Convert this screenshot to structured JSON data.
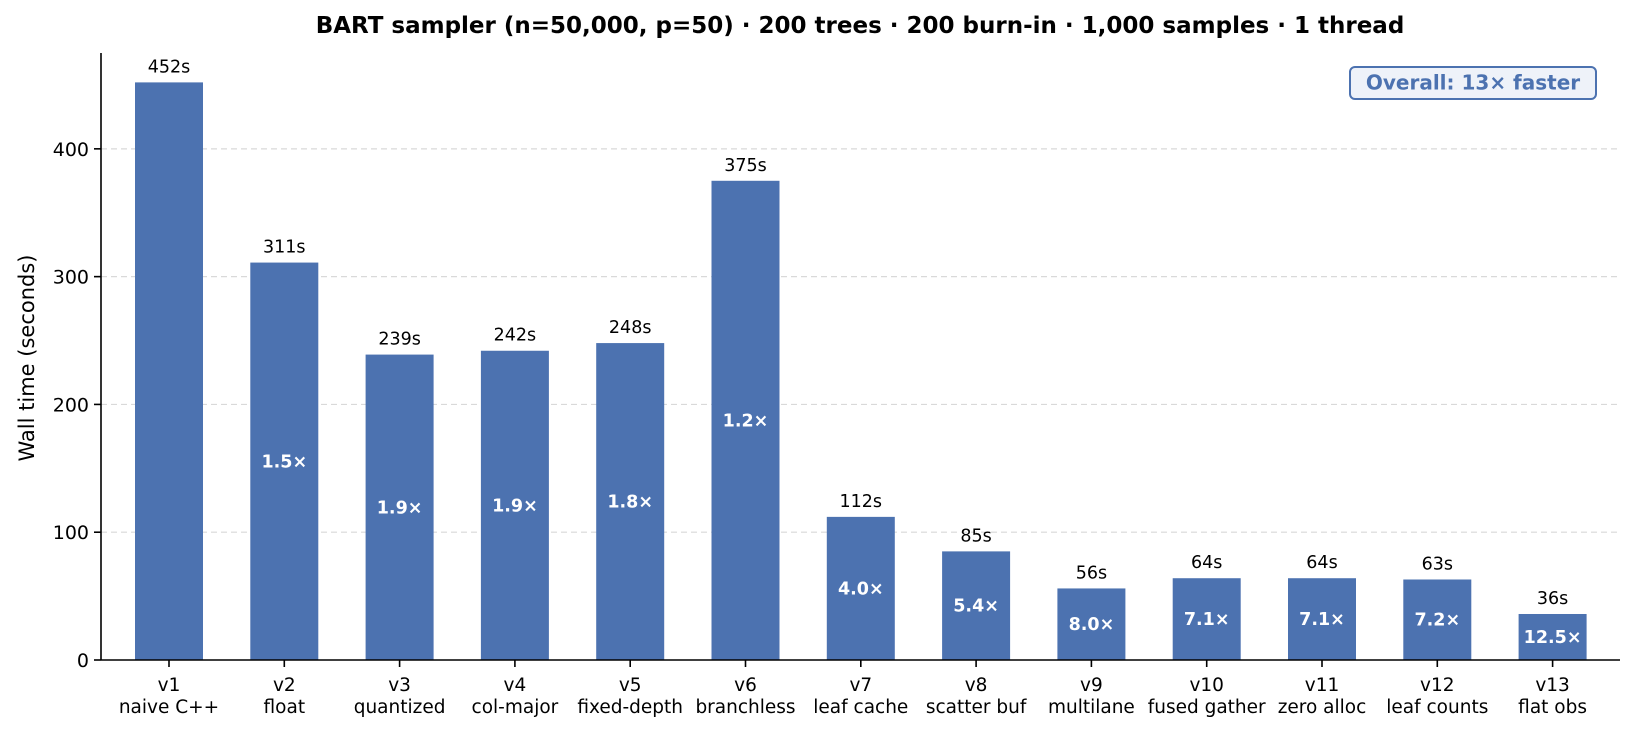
{
  "chart_data": {
    "type": "bar",
    "title": "BART sampler  (n=50,000, p=50)  ·  200 trees · 200 burn-in · 1,000 samples · 1 thread",
    "xlabel": "",
    "ylabel": "Wall time (seconds)",
    "ylim": [
      0,
      475
    ],
    "yticks": [
      0,
      100,
      200,
      300,
      400
    ],
    "grid": "y-dashed",
    "categories": [
      {
        "version": "v1",
        "name": "naive C++"
      },
      {
        "version": "v2",
        "name": "float"
      },
      {
        "version": "v3",
        "name": "quantized"
      },
      {
        "version": "v4",
        "name": "col-major"
      },
      {
        "version": "v5",
        "name": "fixed-depth"
      },
      {
        "version": "v6",
        "name": "branchless"
      },
      {
        "version": "v7",
        "name": "leaf cache"
      },
      {
        "version": "v8",
        "name": "scatter buf"
      },
      {
        "version": "v9",
        "name": "multilane"
      },
      {
        "version": "v10",
        "name": "fused gather"
      },
      {
        "version": "v11",
        "name": "zero alloc"
      },
      {
        "version": "v12",
        "name": "leaf counts"
      },
      {
        "version": "v13",
        "name": "flat obs"
      }
    ],
    "values": [
      452,
      311,
      239,
      242,
      248,
      375,
      112,
      85,
      56,
      64,
      64,
      63,
      36
    ],
    "value_labels": [
      "452s",
      "311s",
      "239s",
      "242s",
      "248s",
      "375s",
      "112s",
      "85s",
      "56s",
      "64s",
      "64s",
      "63s",
      "36s"
    ],
    "speedup_labels": [
      "",
      "1.5×",
      "1.9×",
      "1.9×",
      "1.8×",
      "1.2×",
      "4.0×",
      "5.4×",
      "8.0×",
      "7.1×",
      "7.1×",
      "7.2×",
      "12.5×"
    ],
    "annotation": "Overall: 13× faster",
    "colors": {
      "bar": "#4c72b0",
      "annotation_text": "#4c72b0",
      "annotation_bg": "#eef2f9",
      "grid": "#d9d9d9",
      "axis": "#000000"
    }
  }
}
